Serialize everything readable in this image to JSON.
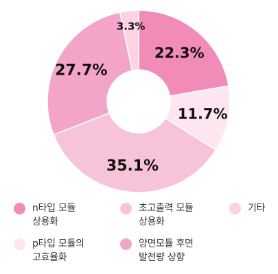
{
  "chart_data": {
    "type": "pie",
    "donut": true,
    "title": "",
    "values": [
      22.3,
      11.7,
      35.1,
      27.7,
      3.3
    ],
    "labels": [
      "22.3%",
      "11.7%",
      "35.1%",
      "27.7%",
      "3.3%"
    ],
    "colors": [
      "#f18bb7",
      "#fde6ef",
      "#f7c3d8",
      "#f2a5c8",
      "#fbd3e3"
    ],
    "legend": [
      {
        "label": "n타입 모듈\n상용화",
        "color": "#f18bb7"
      },
      {
        "label": "초고출력 모듈\n상용화",
        "color": "#f7c3d8"
      },
      {
        "label": "기타",
        "color": "#fbd3e3"
      },
      {
        "label": "p타입 모듈의\n고효율화",
        "color": "#fde6ef"
      },
      {
        "label": "양면모듈 후면\n발전량 상향",
        "color": "#f2a5c8"
      }
    ],
    "legend_placement": "bottom"
  }
}
